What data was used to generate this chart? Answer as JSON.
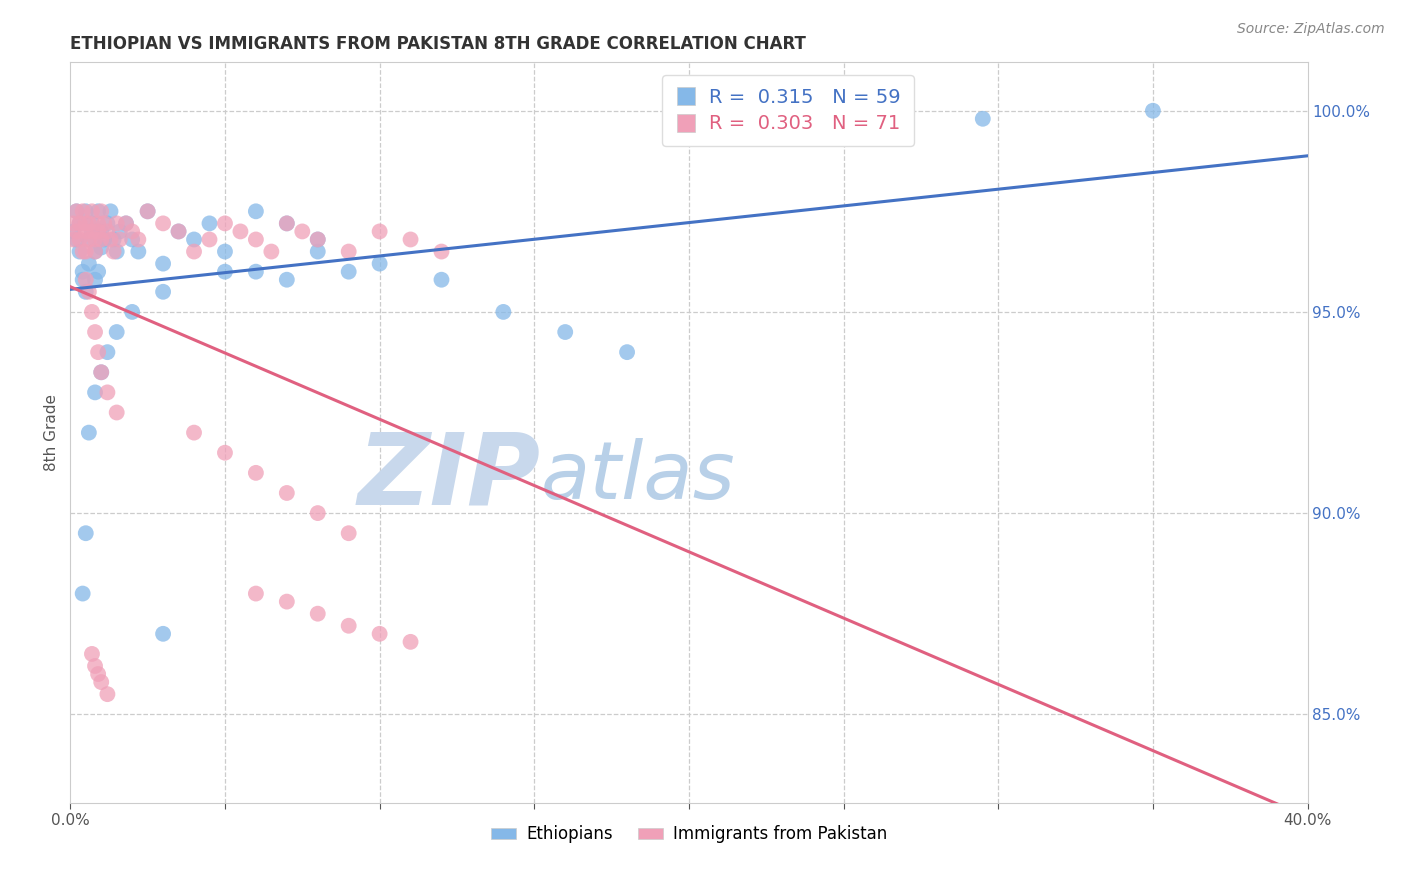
{
  "title": "ETHIOPIAN VS IMMIGRANTS FROM PAKISTAN 8TH GRADE CORRELATION CHART",
  "source": "Source: ZipAtlas.com",
  "ylabel": "8th Grade",
  "xlim": [
    0.0,
    0.4
  ],
  "ylim": [
    0.828,
    1.012
  ],
  "xtick_vals": [
    0.0,
    0.05,
    0.1,
    0.15,
    0.2,
    0.25,
    0.3,
    0.35,
    0.4
  ],
  "xticklabels": [
    "0.0%",
    "",
    "",
    "",
    "",
    "",
    "",
    "",
    "40.0%"
  ],
  "yticks_right": [
    0.85,
    0.9,
    0.95,
    1.0
  ],
  "ytick_right_labels": [
    "85.0%",
    "90.0%",
    "95.0%",
    "100.0%"
  ],
  "blue_R": 0.315,
  "blue_N": 59,
  "pink_R": 0.303,
  "pink_N": 71,
  "blue_color": "#85b8e8",
  "pink_color": "#f0a0b8",
  "blue_line_color": "#4472c4",
  "pink_line_color": "#e06080",
  "watermark_zip": "ZIP",
  "watermark_atlas": "atlas",
  "watermark_zip_color": "#c8d8ec",
  "watermark_atlas_color": "#b8d0e8",
  "legend_label_blue": "Ethiopians",
  "legend_label_pink": "Immigrants from Pakistan",
  "blue_x": [
    0.001,
    0.002,
    0.002,
    0.003,
    0.003,
    0.004,
    0.004,
    0.005,
    0.005,
    0.006,
    0.006,
    0.007,
    0.007,
    0.008,
    0.008,
    0.009,
    0.009,
    0.01,
    0.01,
    0.011,
    0.012,
    0.013,
    0.014,
    0.015,
    0.016,
    0.018,
    0.02,
    0.022,
    0.025,
    0.03,
    0.035,
    0.04,
    0.045,
    0.05,
    0.06,
    0.07,
    0.08,
    0.09,
    0.1,
    0.12,
    0.14,
    0.16,
    0.18,
    0.06,
    0.07,
    0.08,
    0.05,
    0.03,
    0.02,
    0.015,
    0.012,
    0.01,
    0.008,
    0.006,
    0.005,
    0.004,
    0.03,
    0.295,
    0.35
  ],
  "blue_y": [
    0.97,
    0.968,
    0.975,
    0.972,
    0.965,
    0.96,
    0.958,
    0.955,
    0.975,
    0.962,
    0.968,
    0.97,
    0.972,
    0.958,
    0.965,
    0.96,
    0.975,
    0.966,
    0.97,
    0.968,
    0.972,
    0.975,
    0.968,
    0.965,
    0.97,
    0.972,
    0.968,
    0.965,
    0.975,
    0.962,
    0.97,
    0.968,
    0.972,
    0.965,
    0.96,
    0.958,
    0.965,
    0.96,
    0.962,
    0.958,
    0.95,
    0.945,
    0.94,
    0.975,
    0.972,
    0.968,
    0.96,
    0.955,
    0.95,
    0.945,
    0.94,
    0.935,
    0.93,
    0.92,
    0.895,
    0.88,
    0.87,
    0.998,
    1.0
  ],
  "pink_x": [
    0.001,
    0.001,
    0.002,
    0.002,
    0.003,
    0.003,
    0.004,
    0.004,
    0.005,
    0.005,
    0.005,
    0.006,
    0.006,
    0.007,
    0.007,
    0.008,
    0.008,
    0.009,
    0.009,
    0.01,
    0.01,
    0.011,
    0.012,
    0.013,
    0.014,
    0.015,
    0.016,
    0.018,
    0.02,
    0.022,
    0.025,
    0.03,
    0.035,
    0.04,
    0.045,
    0.05,
    0.055,
    0.06,
    0.065,
    0.07,
    0.075,
    0.08,
    0.09,
    0.1,
    0.11,
    0.12,
    0.005,
    0.006,
    0.007,
    0.008,
    0.009,
    0.01,
    0.012,
    0.015,
    0.04,
    0.05,
    0.06,
    0.07,
    0.08,
    0.09,
    0.06,
    0.07,
    0.08,
    0.09,
    0.1,
    0.11,
    0.007,
    0.008,
    0.009,
    0.01,
    0.012
  ],
  "pink_y": [
    0.972,
    0.968,
    0.975,
    0.97,
    0.968,
    0.972,
    0.965,
    0.975,
    0.972,
    0.97,
    0.965,
    0.968,
    0.972,
    0.975,
    0.97,
    0.968,
    0.965,
    0.972,
    0.97,
    0.968,
    0.975,
    0.972,
    0.97,
    0.968,
    0.965,
    0.972,
    0.968,
    0.972,
    0.97,
    0.968,
    0.975,
    0.972,
    0.97,
    0.965,
    0.968,
    0.972,
    0.97,
    0.968,
    0.965,
    0.972,
    0.97,
    0.968,
    0.965,
    0.97,
    0.968,
    0.965,
    0.958,
    0.955,
    0.95,
    0.945,
    0.94,
    0.935,
    0.93,
    0.925,
    0.92,
    0.915,
    0.91,
    0.905,
    0.9,
    0.895,
    0.88,
    0.878,
    0.875,
    0.872,
    0.87,
    0.868,
    0.865,
    0.862,
    0.86,
    0.858,
    0.855
  ]
}
